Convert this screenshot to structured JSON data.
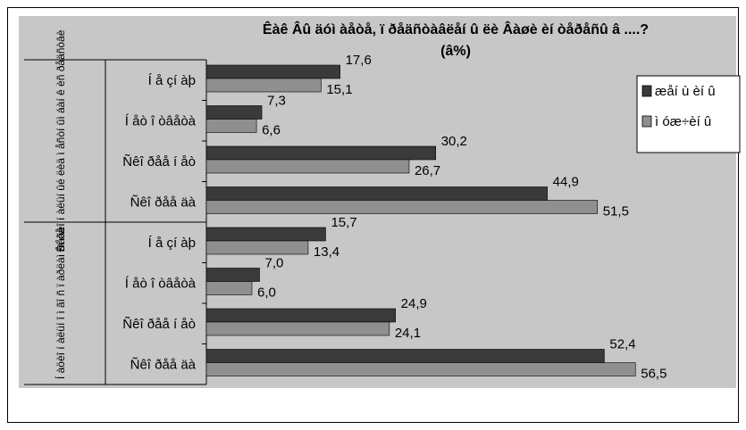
{
  "chart_data": {
    "type": "bar",
    "orientation": "horizontal",
    "title": "Êàê Âû äóì àåòå, ï ðåäñòàâëåí û ëè Âàøè èí òåðåñû  â ....?",
    "subtitle": "(â%)",
    "groups": [
      {
        "label": "Ðåãèî í àëüí ûé  ëèä ì åñòí ûì  áàí ê èñ ðåäñòâè",
        "categories": [
          "Í å çí àþ",
          "Í åò î òâåòà",
          "Ñêî ðåå í åò",
          "Ñêî ðåå äà"
        ]
      },
      {
        "label": "Í àöèî í àëüí î ì  ãî ñ ï àðëàì åí òå",
        "categories": [
          "Í å çí àþ",
          "Í åò î òâåòà",
          "Ñêî ðåå í åò",
          "Ñêî ðåå äà"
        ]
      }
    ],
    "categories": [
      "Í å çí àþ",
      "Í åò î òâåòà",
      "Ñêî ðåå í åò",
      "Ñêî ðåå äà",
      "Í å çí àþ",
      "Í åò î òâåòà",
      "Ñêî ðåå í åò",
      "Ñêî ðåå äà"
    ],
    "series": [
      {
        "name": "æåí ù èí û",
        "color": "#3a3a3a",
        "values": [
          17.6,
          7.3,
          30.2,
          44.9,
          15.7,
          7.0,
          24.9,
          52.4
        ]
      },
      {
        "name": "ì óæ÷èí û",
        "color": "#8f8f8f",
        "values": [
          15.1,
          6.6,
          26.7,
          51.5,
          13.4,
          6.0,
          24.1,
          56.5
        ]
      }
    ],
    "value_labels": [
      [
        "17,6",
        "7,3",
        "30,2",
        "44,9",
        "15,7",
        "7,0",
        "24,9",
        "52,4"
      ],
      [
        "15,1",
        "6,6",
        "26,7",
        "51,5",
        "13,4",
        "6,0",
        "24,1",
        "56,5"
      ]
    ],
    "xlim": [
      0,
      60
    ],
    "legend_position": "right",
    "grid": false
  }
}
